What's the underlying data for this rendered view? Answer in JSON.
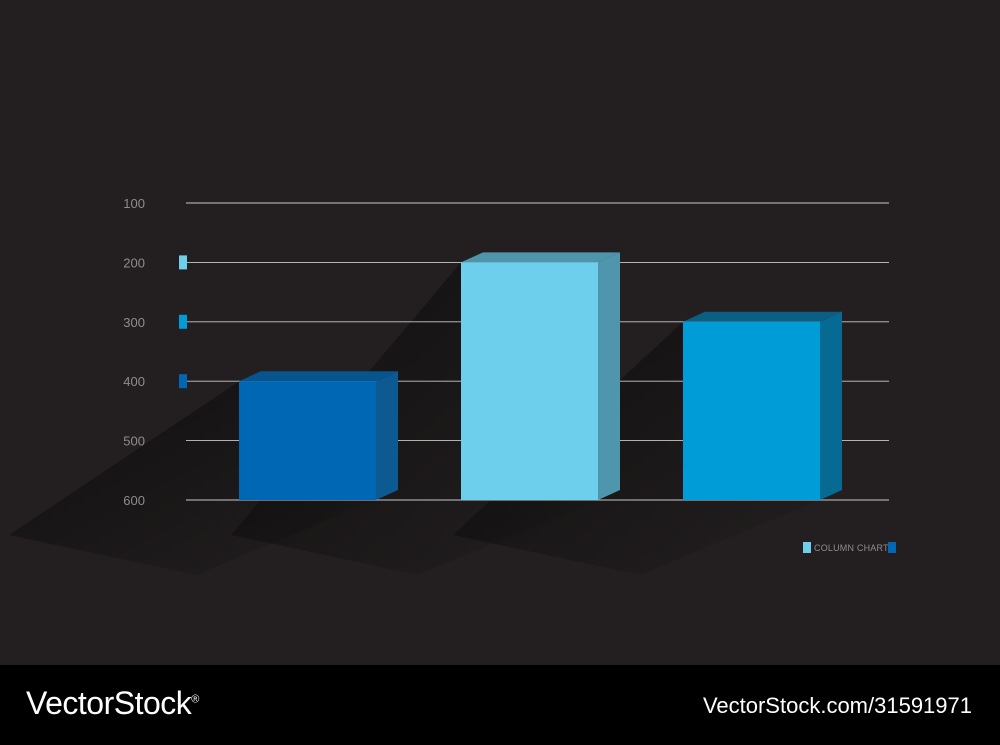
{
  "colors": {
    "background": "#231f20",
    "grid": "#c9c7c8",
    "tick_text": "#8f8c8d",
    "series_colors": [
      "#0067b4",
      "#6ecfec",
      "#009cd8"
    ],
    "series_side_colors": [
      "#0d5a93",
      "#4f96ad",
      "#066a92"
    ],
    "series_top_colors": [
      "#07558f",
      "#4e95ab",
      "#0a5f85"
    ]
  },
  "chart_data": {
    "type": "bar",
    "title": "",
    "xlabel": "",
    "ylabel": "",
    "y_ticks": [
      "100",
      "200",
      "300",
      "400",
      "500",
      "600"
    ],
    "ylim": [
      100,
      600
    ],
    "y_axis_inverted": true,
    "categories": [
      "",
      "",
      ""
    ],
    "values": [
      400,
      200,
      300
    ],
    "grid": true,
    "legend": {
      "position": "bottom-right",
      "label": "COLUMN CHART"
    },
    "axis_markers": [
      {
        "at": 200,
        "color": "#6ecfec"
      },
      {
        "at": 300,
        "color": "#009cd8"
      },
      {
        "at": 400,
        "color": "#0067b4"
      }
    ]
  },
  "footer": {
    "brand": "VectorStock",
    "registered": "®",
    "image_id": "VectorStock.com/31591971"
  }
}
